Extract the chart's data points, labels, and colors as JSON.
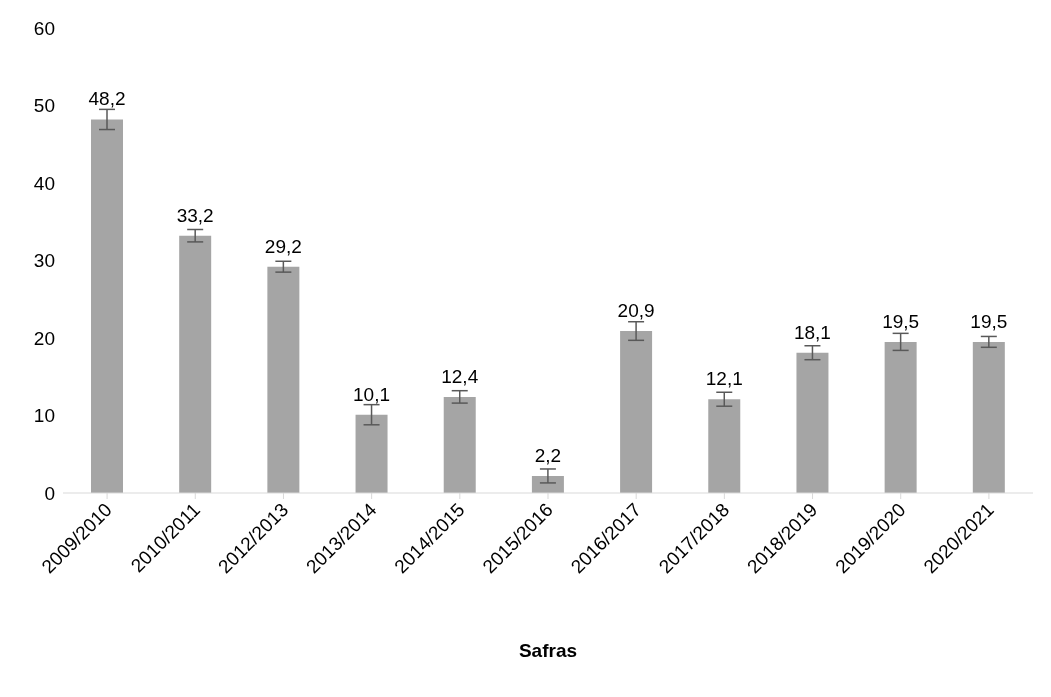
{
  "chart_data": {
    "type": "bar",
    "xlabel": "Safras",
    "categories": [
      "2009/2010",
      "2010/2011",
      "2012/2013",
      "2013/2014",
      "2014/2015",
      "2015/2016",
      "2016/2017",
      "2017/2018",
      "2018/2019",
      "2019/2020",
      "2020/2021"
    ],
    "values": [
      48.2,
      33.2,
      29.2,
      10.1,
      12.4,
      2.2,
      20.9,
      12.1,
      18.1,
      19.5,
      19.5
    ],
    "errors": [
      1.3,
      0.8,
      0.7,
      1.3,
      0.8,
      0.9,
      1.2,
      0.9,
      0.9,
      1.1,
      0.7
    ],
    "value_labels": [
      "48,2",
      "33,2",
      "29,2",
      "10,1",
      "12,4",
      "2,2",
      "20,9",
      "12,1",
      "18,1",
      "19,5",
      "19,5"
    ],
    "color": "#a5a5a5",
    "ylim": [
      0,
      60
    ],
    "yticks": [
      0,
      10,
      20,
      30,
      40,
      50,
      60
    ],
    "grid": false,
    "legend": false
  }
}
